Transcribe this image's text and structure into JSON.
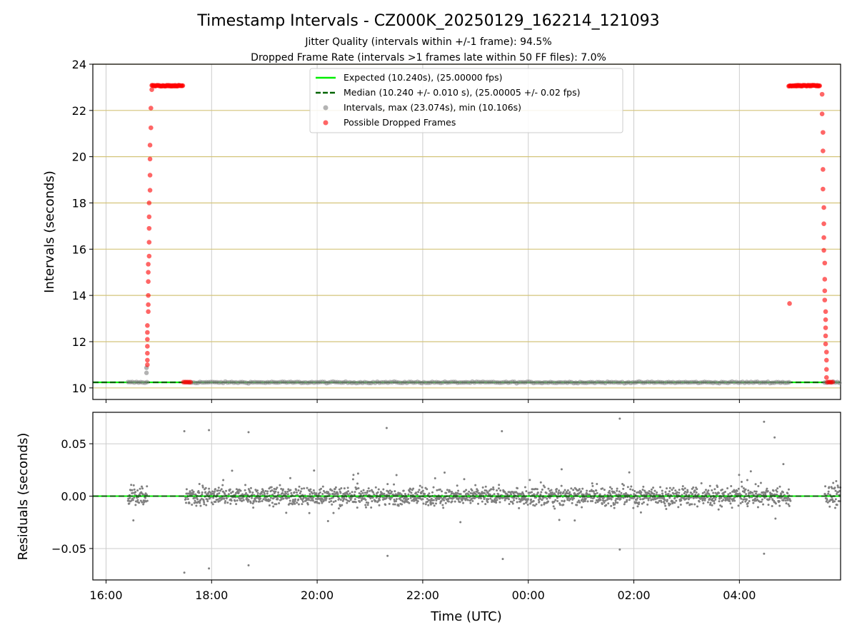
{
  "figure": {
    "title": "Timestamp Intervals - CZ000K_20250129_162214_121093",
    "subtitle_1": "Jitter Quality (intervals within +/-1 frame): 94.5%",
    "subtitle_2": "Dropped Frame Rate (intervals >1 frames late within 50 FF files): 7.0%"
  },
  "colors": {
    "expected": "#00ee00",
    "median": "#006400",
    "intervals": "#808080",
    "dropped": "#ff0000",
    "gridline_top": "#d4c47a",
    "gridline": "#cccccc"
  },
  "chart_data": [
    {
      "type": "scatter",
      "panel": "intervals",
      "xlabel": "",
      "ylabel": "Intervals (seconds)",
      "xlim": [
        "2025-01-29T15:45",
        "2025-01-30T05:55"
      ],
      "ylim": [
        9.5,
        24
      ],
      "yticks": [
        "10",
        "12",
        "14",
        "16",
        "18",
        "20",
        "22",
        "24"
      ],
      "grid": true,
      "legend": {
        "position": "top-center",
        "entries": [
          {
            "label": "Expected (10.240s), (25.00000 fps)",
            "style": "line",
            "color": "#00ee00"
          },
          {
            "label": "Median (10.240 +/- 0.010 s), (25.00005 +/- 0.02 fps)",
            "style": "dashed",
            "color": "#006400"
          },
          {
            "label": "Intervals, max (23.074s), min (10.106s)",
            "style": "marker",
            "color": "#808080"
          },
          {
            "label": "Possible Dropped Frames",
            "style": "marker",
            "color": "#ff0000"
          }
        ]
      },
      "expected_value": 10.24,
      "median_value": 10.24,
      "series": [
        {
          "name": "Intervals, max (23.074s), min (10.106s)",
          "segments": [
            {
              "x_start": "16:25",
              "x_end": "16:48",
              "y": 10.24,
              "spread": 0.03
            },
            {
              "x_start": "17:30",
              "x_end": "04:58",
              "y": 10.24,
              "spread": 0.03
            },
            {
              "x_start": "05:37",
              "x_end": "05:55",
              "y": 10.24,
              "spread": 0.03
            }
          ],
          "points": [
            {
              "x": "16:46",
              "y": 10.65
            },
            {
              "x": "16:46",
              "y": 10.87
            }
          ]
        },
        {
          "name": "Possible Dropped Frames",
          "points": [
            {
              "x": "16:47",
              "y": 11.0
            },
            {
              "x": "16:47",
              "y": 11.2
            },
            {
              "x": "16:47",
              "y": 11.5
            },
            {
              "x": "16:47",
              "y": 11.8
            },
            {
              "x": "16:47",
              "y": 12.1
            },
            {
              "x": "16:47",
              "y": 12.4
            },
            {
              "x": "16:47",
              "y": 12.7
            },
            {
              "x": "16:48",
              "y": 13.3
            },
            {
              "x": "16:48",
              "y": 13.6
            },
            {
              "x": "16:48",
              "y": 14.0
            },
            {
              "x": "16:48",
              "y": 14.6
            },
            {
              "x": "16:48",
              "y": 15.0
            },
            {
              "x": "16:48",
              "y": 15.35
            },
            {
              "x": "16:49",
              "y": 15.7
            },
            {
              "x": "16:49",
              "y": 16.3
            },
            {
              "x": "16:49",
              "y": 16.9
            },
            {
              "x": "16:49",
              "y": 17.4
            },
            {
              "x": "16:49",
              "y": 18.0
            },
            {
              "x": "16:50",
              "y": 18.55
            },
            {
              "x": "16:50",
              "y": 19.2
            },
            {
              "x": "16:50",
              "y": 19.9
            },
            {
              "x": "16:50",
              "y": 20.5
            },
            {
              "x": "16:51",
              "y": 21.25
            },
            {
              "x": "16:51",
              "y": 22.1
            },
            {
              "x": "16:52",
              "y": 22.9
            },
            {
              "x": "17:28",
              "y": 10.25
            },
            {
              "x": "17:30",
              "y": 10.25
            },
            {
              "x": "17:32",
              "y": 10.25
            },
            {
              "x": "17:34",
              "y": 10.25
            },
            {
              "x": "17:36",
              "y": 10.25
            },
            {
              "x": "04:57",
              "y": 13.65
            },
            {
              "x": "05:34",
              "y": 22.7
            },
            {
              "x": "05:34",
              "y": 21.85
            },
            {
              "x": "05:35",
              "y": 21.05
            },
            {
              "x": "05:35",
              "y": 20.25
            },
            {
              "x": "05:35",
              "y": 19.45
            },
            {
              "x": "05:35",
              "y": 18.6
            },
            {
              "x": "05:36",
              "y": 17.8
            },
            {
              "x": "05:36",
              "y": 17.1
            },
            {
              "x": "05:36",
              "y": 16.5
            },
            {
              "x": "05:36",
              "y": 15.95
            },
            {
              "x": "05:37",
              "y": 15.4
            },
            {
              "x": "05:37",
              "y": 14.7
            },
            {
              "x": "05:37",
              "y": 14.2
            },
            {
              "x": "05:37",
              "y": 13.8
            },
            {
              "x": "05:38",
              "y": 13.3
            },
            {
              "x": "05:38",
              "y": 12.95
            },
            {
              "x": "05:38",
              "y": 12.6
            },
            {
              "x": "05:38",
              "y": 12.25
            },
            {
              "x": "05:38",
              "y": 11.9
            },
            {
              "x": "05:39",
              "y": 11.55
            },
            {
              "x": "05:39",
              "y": 11.2
            },
            {
              "x": "05:39",
              "y": 10.8
            },
            {
              "x": "05:39",
              "y": 10.45
            },
            {
              "x": "05:40",
              "y": 10.25
            },
            {
              "x": "05:42",
              "y": 10.25
            },
            {
              "x": "05:44",
              "y": 10.25
            },
            {
              "x": "05:46",
              "y": 10.25
            }
          ],
          "plateaus": [
            {
              "x_start": "16:52",
              "x_end": "17:28",
              "y": 23.07
            },
            {
              "x_start": "04:56",
              "x_end": "05:32",
              "y": 23.07
            }
          ]
        }
      ]
    },
    {
      "type": "scatter",
      "panel": "residuals",
      "xlabel": "Time (UTC)",
      "ylabel": "Residuals (seconds)",
      "xlim": [
        "2025-01-29T15:45",
        "2025-01-30T05:55"
      ],
      "ylim": [
        -0.08,
        0.08
      ],
      "yticks": [
        {
          "label": "0.05",
          "value": 0.05
        },
        {
          "label": "0.00",
          "value": 0.0
        },
        {
          "label": "−0.05",
          "value": -0.05
        }
      ],
      "xticks": [
        "16:00",
        "18:00",
        "20:00",
        "22:00",
        "00:00",
        "02:00",
        "04:00"
      ],
      "grid": true,
      "zero_line": 0.0,
      "series": [
        {
          "name": "",
          "segments": [
            {
              "x_start": "16:25",
              "x_end": "16:47",
              "typical_spread": 0.015,
              "max_abs": 0.03
            },
            {
              "x_start": "17:30",
              "x_end": "04:58",
              "typical_spread": 0.012,
              "max_abs": 0.075
            },
            {
              "x_start": "05:37",
              "x_end": "05:55",
              "typical_spread": 0.015,
              "max_abs": 0.04
            }
          ],
          "outliers": [
            {
              "x": "17:29",
              "y": 0.062
            },
            {
              "x": "17:29",
              "y": -0.073
            },
            {
              "x": "17:57",
              "y": 0.063
            },
            {
              "x": "17:57",
              "y": -0.069
            },
            {
              "x": "18:42",
              "y": 0.061
            },
            {
              "x": "18:42",
              "y": -0.066
            },
            {
              "x": "21:19",
              "y": 0.065
            },
            {
              "x": "21:20",
              "y": -0.057
            },
            {
              "x": "23:30",
              "y": 0.062
            },
            {
              "x": "23:31",
              "y": -0.06
            },
            {
              "x": "01:44",
              "y": 0.074
            },
            {
              "x": "01:44",
              "y": -0.051
            },
            {
              "x": "04:28",
              "y": 0.071
            },
            {
              "x": "04:28",
              "y": -0.055
            },
            {
              "x": "04:40",
              "y": 0.056
            }
          ]
        }
      ]
    }
  ]
}
